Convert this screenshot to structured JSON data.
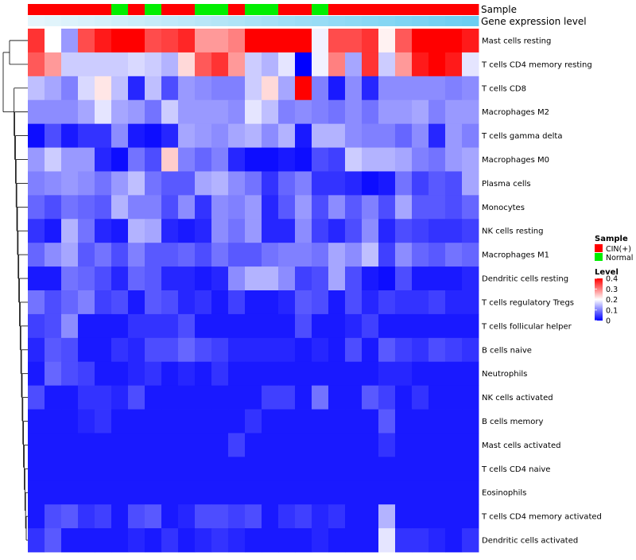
{
  "chart_data": {
    "type": "heatmap",
    "title": "",
    "annotation_track_labels": [
      "Sample",
      "Gene expression level"
    ],
    "sample_groups": [
      "CIN(+)",
      "CIN(+)",
      "CIN(+)",
      "CIN(+)",
      "CIN(+)",
      "Normal",
      "CIN(+)",
      "Normal",
      "CIN(+)",
      "CIN(+)",
      "Normal",
      "Normal",
      "CIN(+)",
      "Normal",
      "Normal",
      "CIN(+)",
      "CIN(+)",
      "Normal",
      "CIN(+)",
      "CIN(+)",
      "CIN(+)",
      "CIN(+)",
      "CIN(+)",
      "CIN(+)",
      "CIN(+)",
      "CIN(+)",
      "CIN(+)"
    ],
    "expression_level": [
      0.02,
      0.05,
      0.08,
      0.11,
      0.14,
      0.18,
      0.21,
      0.25,
      0.28,
      0.31,
      0.35,
      0.38,
      0.41,
      0.45,
      0.48,
      0.52,
      0.55,
      0.58,
      0.62,
      0.65,
      0.69,
      0.72,
      0.76,
      0.79,
      0.83,
      0.87,
      0.9
    ],
    "rows": [
      "Mast cells resting",
      "T cells CD4 memory resting",
      "T cells CD8",
      "Macrophages M2",
      "T cells gamma delta",
      "Macrophages M0",
      "Plasma cells",
      "Monocytes",
      "NK cells resting",
      "Macrophages M1",
      "Dendritic cells resting",
      "T cells regulatory  Tregs",
      "T cells follicular helper",
      "B cells naive",
      "Neutrophils",
      "NK cells activated",
      "B cells memory",
      "Mast cells activated",
      "T cells CD4 naive",
      "Eosinophils",
      "T cells CD4 memory activated",
      "Dendritic cells activated"
    ],
    "values": [
      [
        0.36,
        0.2,
        0.12,
        0.34,
        0.38,
        0.4,
        0.4,
        0.34,
        0.35,
        0.37,
        0.28,
        0.28,
        0.3,
        0.4,
        0.4,
        0.4,
        0.4,
        0.19,
        0.34,
        0.34,
        0.36,
        0.21,
        0.33,
        0.4,
        0.4,
        0.4,
        0.38
      ],
      [
        0.33,
        0.28,
        0.16,
        0.16,
        0.16,
        0.16,
        0.17,
        0.16,
        0.14,
        0.23,
        0.33,
        0.36,
        0.28,
        0.16,
        0.14,
        0.18,
        0.0,
        0.19,
        0.3,
        0.13,
        0.36,
        0.16,
        0.28,
        0.38,
        0.4,
        0.38,
        0.18
      ],
      [
        0.15,
        0.13,
        0.1,
        0.17,
        0.22,
        0.15,
        0.03,
        0.15,
        0.06,
        0.12,
        0.11,
        0.1,
        0.1,
        0.16,
        0.23,
        0.13,
        0.4,
        0.1,
        0.02,
        0.11,
        0.03,
        0.11,
        0.11,
        0.11,
        0.11,
        0.1,
        0.11
      ],
      [
        0.11,
        0.11,
        0.11,
        0.13,
        0.18,
        0.13,
        0.12,
        0.09,
        0.16,
        0.12,
        0.12,
        0.12,
        0.11,
        0.18,
        0.15,
        0.1,
        0.11,
        0.1,
        0.09,
        0.11,
        0.09,
        0.12,
        0.12,
        0.13,
        0.1,
        0.12,
        0.12
      ],
      [
        0.01,
        0.06,
        0.02,
        0.04,
        0.04,
        0.11,
        0.02,
        0.01,
        0.03,
        0.13,
        0.12,
        0.11,
        0.13,
        0.14,
        0.11,
        0.14,
        0.02,
        0.14,
        0.14,
        0.11,
        0.1,
        0.1,
        0.08,
        0.11,
        0.03,
        0.12,
        0.1
      ],
      [
        0.12,
        0.16,
        0.12,
        0.12,
        0.03,
        0.01,
        0.09,
        0.06,
        0.24,
        0.1,
        0.08,
        0.1,
        0.03,
        0.01,
        0.01,
        0.02,
        0.01,
        0.06,
        0.05,
        0.16,
        0.14,
        0.14,
        0.13,
        0.1,
        0.09,
        0.12,
        0.13
      ],
      [
        0.1,
        0.11,
        0.12,
        0.11,
        0.09,
        0.12,
        0.15,
        0.09,
        0.07,
        0.07,
        0.13,
        0.14,
        0.11,
        0.09,
        0.04,
        0.08,
        0.1,
        0.04,
        0.04,
        0.03,
        0.01,
        0.02,
        0.09,
        0.05,
        0.07,
        0.06,
        0.13
      ],
      [
        0.08,
        0.06,
        0.09,
        0.08,
        0.07,
        0.14,
        0.1,
        0.1,
        0.06,
        0.11,
        0.04,
        0.11,
        0.1,
        0.12,
        0.03,
        0.07,
        0.12,
        0.06,
        0.11,
        0.07,
        0.1,
        0.06,
        0.13,
        0.07,
        0.07,
        0.06,
        0.08
      ],
      [
        0.04,
        0.02,
        0.14,
        0.09,
        0.03,
        0.02,
        0.14,
        0.13,
        0.03,
        0.02,
        0.03,
        0.11,
        0.09,
        0.12,
        0.03,
        0.03,
        0.11,
        0.05,
        0.03,
        0.06,
        0.11,
        0.03,
        0.06,
        0.05,
        0.04,
        0.04,
        0.05
      ],
      [
        0.08,
        0.11,
        0.13,
        0.07,
        0.09,
        0.06,
        0.1,
        0.07,
        0.07,
        0.08,
        0.06,
        0.09,
        0.07,
        0.07,
        0.09,
        0.1,
        0.1,
        0.09,
        0.13,
        0.11,
        0.15,
        0.05,
        0.11,
        0.08,
        0.07,
        0.09,
        0.08
      ],
      [
        0.02,
        0.02,
        0.09,
        0.08,
        0.06,
        0.03,
        0.08,
        0.07,
        0.03,
        0.03,
        0.02,
        0.03,
        0.11,
        0.14,
        0.14,
        0.11,
        0.05,
        0.06,
        0.13,
        0.06,
        0.02,
        0.01,
        0.06,
        0.02,
        0.02,
        0.02,
        0.03
      ],
      [
        0.09,
        0.06,
        0.08,
        0.1,
        0.05,
        0.06,
        0.02,
        0.07,
        0.06,
        0.03,
        0.04,
        0.02,
        0.05,
        0.02,
        0.02,
        0.03,
        0.07,
        0.06,
        0.02,
        0.06,
        0.03,
        0.05,
        0.04,
        0.04,
        0.05,
        0.03,
        0.03
      ],
      [
        0.05,
        0.06,
        0.11,
        0.02,
        0.02,
        0.02,
        0.04,
        0.04,
        0.04,
        0.06,
        0.02,
        0.02,
        0.02,
        0.02,
        0.02,
        0.02,
        0.06,
        0.02,
        0.02,
        0.03,
        0.05,
        0.02,
        0.02,
        0.02,
        0.02,
        0.02,
        0.02
      ],
      [
        0.03,
        0.07,
        0.06,
        0.02,
        0.02,
        0.04,
        0.03,
        0.06,
        0.06,
        0.08,
        0.06,
        0.05,
        0.03,
        0.03,
        0.03,
        0.03,
        0.02,
        0.03,
        0.02,
        0.06,
        0.02,
        0.07,
        0.05,
        0.04,
        0.06,
        0.05,
        0.04
      ],
      [
        0.02,
        0.08,
        0.06,
        0.05,
        0.02,
        0.02,
        0.03,
        0.04,
        0.02,
        0.03,
        0.02,
        0.04,
        0.02,
        0.02,
        0.02,
        0.02,
        0.02,
        0.02,
        0.02,
        0.02,
        0.02,
        0.03,
        0.03,
        0.02,
        0.02,
        0.02,
        0.02
      ],
      [
        0.06,
        0.02,
        0.02,
        0.04,
        0.04,
        0.03,
        0.06,
        0.02,
        0.02,
        0.02,
        0.02,
        0.02,
        0.02,
        0.02,
        0.05,
        0.05,
        0.02,
        0.09,
        0.02,
        0.02,
        0.07,
        0.05,
        0.02,
        0.04,
        0.02,
        0.02,
        0.02
      ],
      [
        0.02,
        0.02,
        0.02,
        0.03,
        0.04,
        0.02,
        0.02,
        0.02,
        0.02,
        0.02,
        0.02,
        0.02,
        0.02,
        0.04,
        0.02,
        0.02,
        0.02,
        0.02,
        0.02,
        0.02,
        0.02,
        0.07,
        0.02,
        0.02,
        0.02,
        0.02,
        0.02
      ],
      [
        0.02,
        0.02,
        0.02,
        0.02,
        0.02,
        0.02,
        0.02,
        0.02,
        0.02,
        0.02,
        0.02,
        0.02,
        0.05,
        0.02,
        0.02,
        0.02,
        0.02,
        0.02,
        0.02,
        0.02,
        0.02,
        0.04,
        0.02,
        0.02,
        0.02,
        0.02,
        0.02
      ],
      [
        0.02,
        0.02,
        0.02,
        0.02,
        0.02,
        0.02,
        0.02,
        0.02,
        0.02,
        0.02,
        0.02,
        0.02,
        0.02,
        0.02,
        0.02,
        0.02,
        0.02,
        0.02,
        0.02,
        0.02,
        0.02,
        0.02,
        0.02,
        0.02,
        0.02,
        0.02,
        0.02
      ],
      [
        0.02,
        0.02,
        0.02,
        0.02,
        0.02,
        0.02,
        0.02,
        0.02,
        0.02,
        0.02,
        0.02,
        0.02,
        0.02,
        0.02,
        0.02,
        0.02,
        0.02,
        0.02,
        0.02,
        0.02,
        0.02,
        0.02,
        0.02,
        0.02,
        0.02,
        0.02,
        0.02
      ],
      [
        0.02,
        0.06,
        0.07,
        0.04,
        0.05,
        0.02,
        0.06,
        0.07,
        0.02,
        0.03,
        0.06,
        0.06,
        0.05,
        0.06,
        0.02,
        0.04,
        0.05,
        0.03,
        0.04,
        0.02,
        0.02,
        0.14,
        0.02,
        0.02,
        0.02,
        0.02,
        0.02
      ],
      [
        0.04,
        0.07,
        0.02,
        0.02,
        0.02,
        0.02,
        0.03,
        0.02,
        0.04,
        0.02,
        0.03,
        0.04,
        0.03,
        0.02,
        0.02,
        0.02,
        0.02,
        0.03,
        0.02,
        0.02,
        0.02,
        0.18,
        0.04,
        0.04,
        0.03,
        0.02,
        0.04
      ]
    ],
    "legend_sample_title": "Sample",
    "legend_sample_items": [
      {
        "label": "CIN(+)",
        "color": "#ff0000"
      },
      {
        "label": "Normal",
        "color": "#00ee00"
      }
    ],
    "legend_level_title": "Level",
    "legend_level_ticks": [
      "0.4",
      "0.3",
      "0.2",
      "0.1",
      "0"
    ],
    "legend_level_tick_values": [
      0.4,
      0.3,
      0.2,
      0.1,
      0
    ],
    "color_scale": {
      "low": "#0000ff",
      "mid": "#ffffff",
      "high": "#ff0000",
      "min": 0,
      "mid_value": 0.2,
      "max": 0.4
    },
    "expression_color_scale": {
      "low": "#e8f6fc",
      "high": "#5ec9f0"
    }
  }
}
